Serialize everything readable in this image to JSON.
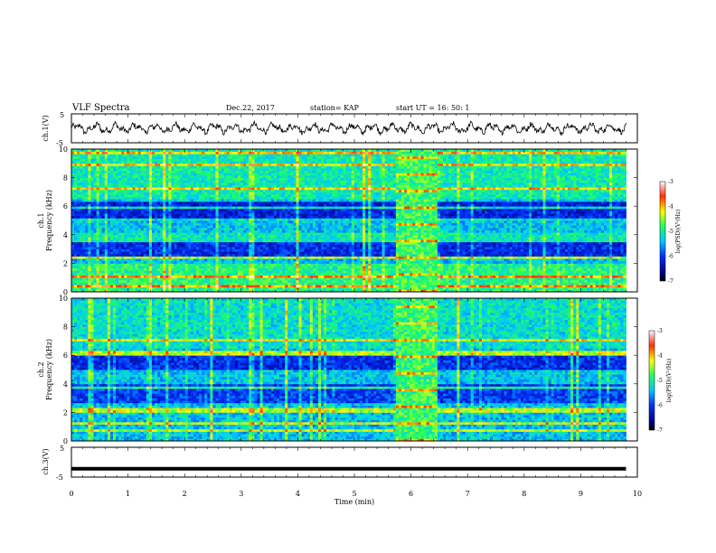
{
  "header": {
    "title": "VLF Spectra",
    "date": "Dec.22, 2017",
    "station": "station= KAP",
    "start_ut": "start  UT =   16: 50: 1"
  },
  "chart_data": [
    {
      "type": "line",
      "name": "ch1-waveform",
      "ylabel": "ch.1(V)",
      "ylim": [
        -5,
        5
      ],
      "ytick_labels": [
        "5",
        "-5"
      ],
      "xlim": [
        0,
        10
      ],
      "description_values": "noisy oscillating trace around ~0 V, amplitude roughly ±2 V",
      "x_end": 9.8
    },
    {
      "type": "heatmap",
      "name": "ch1-spectrogram",
      "ylabel": "ch.1\nFrequency (kHz)",
      "ylabel_lines": [
        "ch.1",
        "Frequency (kHz)"
      ],
      "ylim": [
        0,
        10
      ],
      "ytick_labels": [
        "0",
        "2",
        "4",
        "6",
        "8",
        "10"
      ],
      "xlim": [
        0,
        10
      ],
      "x_end": 9.8,
      "special_interval_min": [
        5.75,
        6.45
      ],
      "colorbar": {
        "label": "log(PSD)(V²/Hz)",
        "range": [
          -7,
          -3
        ],
        "tick_labels": [
          "-3",
          "-4",
          "-5",
          "-6",
          "-7"
        ]
      }
    },
    {
      "type": "heatmap",
      "name": "ch2-spectrogram",
      "ylabel": "ch.2\nFrequency (kHz)",
      "ylabel_lines": [
        "ch.2",
        "Frequency (kHz)"
      ],
      "ylim": [
        0,
        10
      ],
      "ytick_labels": [
        "0",
        "2",
        "4",
        "6",
        "8",
        "10"
      ],
      "xlim": [
        0,
        10
      ],
      "x_end": 9.8,
      "special_interval_min": [
        5.75,
        6.45
      ],
      "colorbar": {
        "label": "log(PSD)(V²/Hz)",
        "range": [
          -7,
          -3
        ],
        "tick_labels": [
          "-3",
          "-4",
          "-5",
          "-6",
          "-7"
        ]
      }
    },
    {
      "type": "line",
      "name": "ch3-waveform",
      "ylabel": "ch.3(V)",
      "ylim": [
        -5,
        5
      ],
      "ytick_labels": [
        "5",
        "-5"
      ],
      "xlim": [
        0,
        10
      ],
      "x_end": 9.8,
      "constant_value": -2.2
    }
  ],
  "xaxis": {
    "label": "Time (min)",
    "tick_labels": [
      "0",
      "1",
      "2",
      "3",
      "4",
      "5",
      "6",
      "7",
      "8",
      "9",
      "10"
    ]
  }
}
